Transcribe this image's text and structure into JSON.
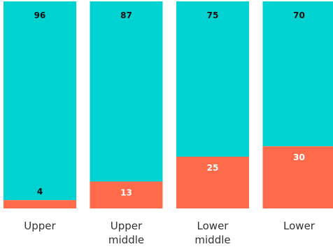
{
  "chart_data": {
    "type": "bar",
    "stacked": true,
    "percent": true,
    "categories": [
      [
        "Upper"
      ],
      [
        "Upper",
        "middle"
      ],
      [
        "Lower",
        "middle"
      ],
      [
        "Lower"
      ]
    ],
    "series": [
      {
        "values": [
          4,
          13,
          25,
          30
        ],
        "color": "#ff6b4a"
      },
      {
        "values": [
          96,
          87,
          75,
          70
        ],
        "color": "#00d1d1"
      }
    ],
    "ylim": [
      0,
      100
    ],
    "grid": false,
    "legend": "none"
  }
}
